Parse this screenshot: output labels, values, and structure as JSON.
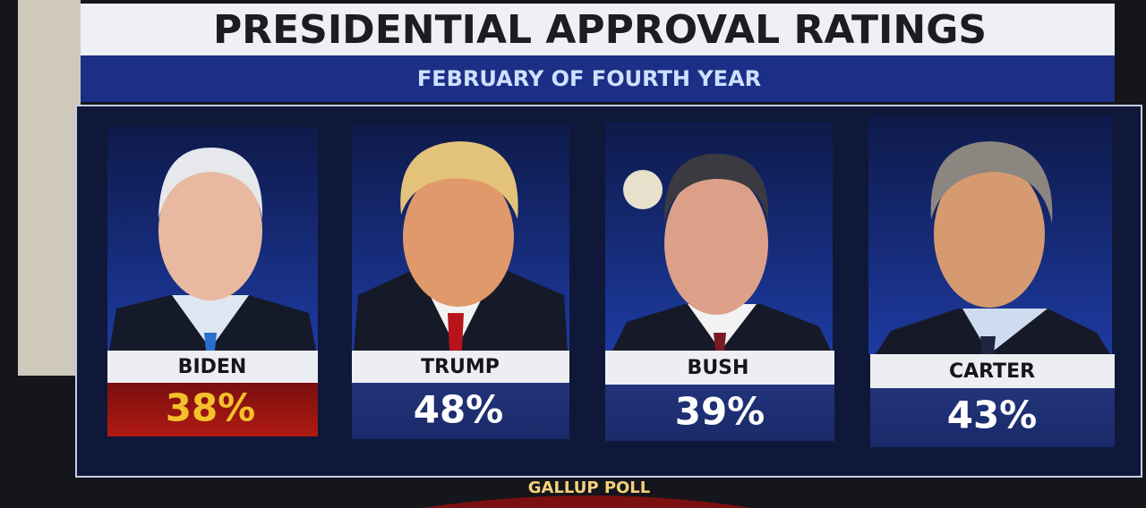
{
  "header": {
    "title": "PRESIDENTIAL APPROVAL RATINGS",
    "subtitle": "FEBRUARY OF FOURTH YEAR"
  },
  "cards": [
    {
      "name": "BIDEN",
      "value": "38%"
    },
    {
      "name": "TRUMP",
      "value": "48%"
    },
    {
      "name": "BUSH",
      "value": "39%"
    },
    {
      "name": "CARTER",
      "value": "43%"
    }
  ],
  "footer": "GALLUP POLL"
}
